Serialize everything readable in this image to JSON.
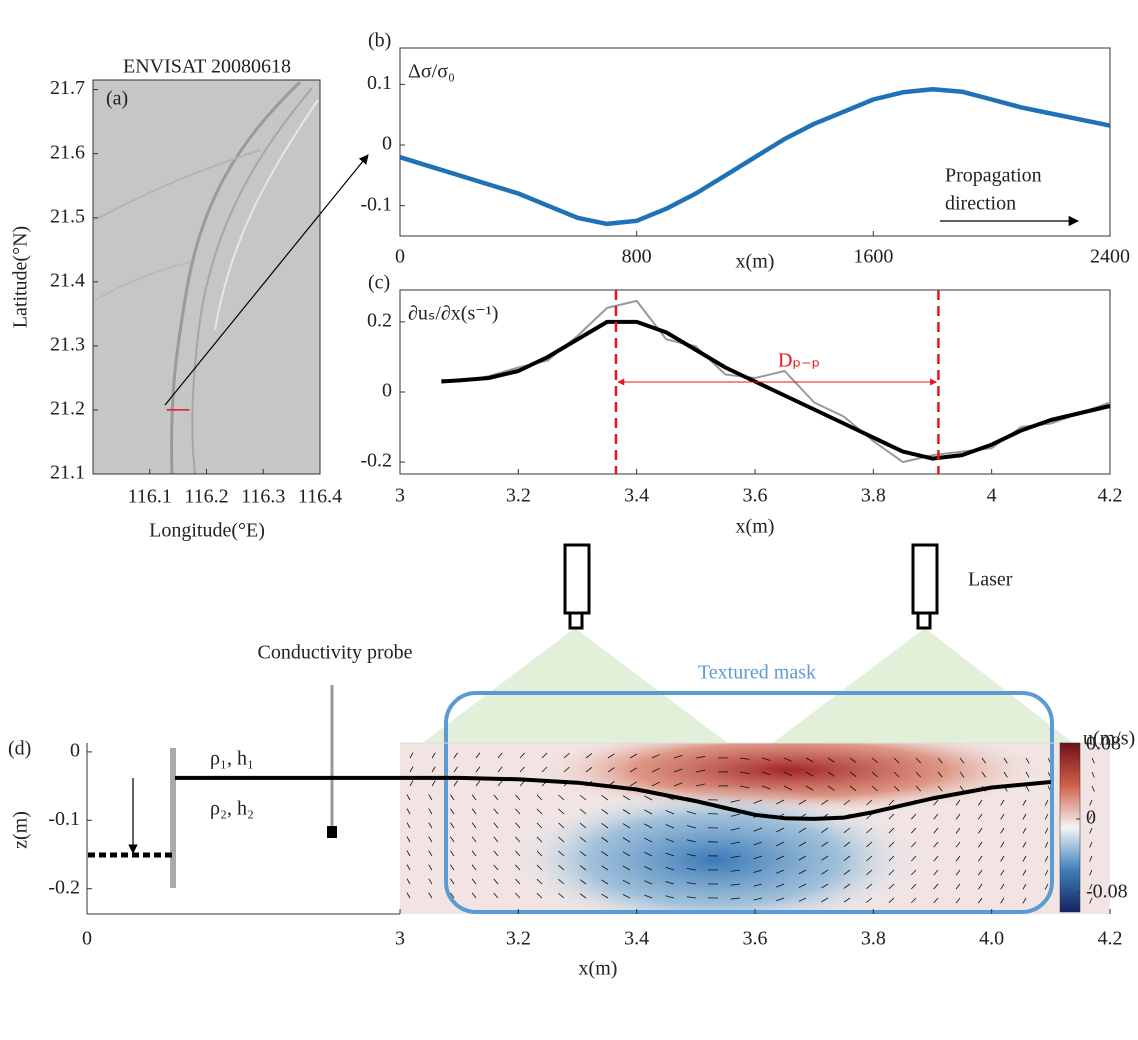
{
  "chart_data": [
    {
      "type": "image",
      "label": "(a)",
      "title": "ENVISAT 20080618",
      "xlabel": "Longitude(°E)",
      "ylabel": "Latitude(°N)",
      "xlim": [
        116.0,
        116.4
      ],
      "xticks": [
        116.1,
        116.2,
        116.3,
        116.4
      ],
      "ylim": [
        21.1,
        21.715
      ],
      "yticks": [
        21.1,
        21.2,
        21.3,
        21.4,
        21.5,
        21.6,
        21.7
      ],
      "series": [
        {
          "color": "#e8141c",
          "x": [
            116.13,
            116.17
          ],
          "values": [
            21.2,
            21.2
          ]
        }
      ]
    },
    {
      "type": "line",
      "label": "(b)",
      "ylabel": "Δσ/σ₀",
      "xlabel": "x(m)",
      "annotation": [
        "Propagation",
        "direction"
      ],
      "xlim": [
        0,
        2400
      ],
      "xticks": [
        0,
        800,
        1600,
        2400
      ],
      "ylim": [
        -0.15,
        0.16
      ],
      "yticks": [
        -0.1,
        0,
        0.1
      ],
      "series": [
        {
          "color": "#1f72b8",
          "x": [
            0,
            100,
            200,
            300,
            400,
            500,
            600,
            700,
            800,
            900,
            1000,
            1100,
            1200,
            1300,
            1400,
            1500,
            1600,
            1700,
            1800,
            1900,
            2000,
            2100,
            2200,
            2300,
            2400
          ],
          "values": [
            -0.02,
            -0.035,
            -0.05,
            -0.065,
            -0.08,
            -0.1,
            -0.12,
            -0.13,
            -0.125,
            -0.105,
            -0.08,
            -0.05,
            -0.02,
            0.01,
            0.035,
            0.055,
            0.075,
            0.087,
            0.092,
            0.088,
            0.075,
            0.062,
            0.052,
            0.042,
            0.032
          ]
        }
      ]
    },
    {
      "type": "line",
      "label": "(c)",
      "ylabel": "∂uₛ/∂x(s⁻¹)",
      "xlabel": "x(m)",
      "annotation": "Dₚ₋ₚ",
      "vlines": [
        3.365,
        3.91
      ],
      "xlim": [
        3,
        4.2
      ],
      "xticks": [
        3,
        3.2,
        3.4,
        3.6,
        3.8,
        4,
        4.2
      ],
      "ylim": [
        -0.234,
        0.291
      ],
      "yticks": [
        -0.2,
        0,
        0.2
      ],
      "series": [
        {
          "color": "#999999",
          "x": [
            3.07,
            3.1,
            3.15,
            3.2,
            3.25,
            3.3,
            3.35,
            3.4,
            3.45,
            3.5,
            3.55,
            3.6,
            3.65,
            3.7,
            3.75,
            3.8,
            3.85,
            3.9,
            3.95,
            4.0,
            4.05,
            4.1,
            4.15,
            4.2
          ],
          "values": [
            0.035,
            0.03,
            0.045,
            0.07,
            0.09,
            0.16,
            0.24,
            0.26,
            0.15,
            0.13,
            0.05,
            0.04,
            0.06,
            -0.03,
            -0.07,
            -0.14,
            -0.2,
            -0.18,
            -0.17,
            -0.16,
            -0.1,
            -0.09,
            -0.06,
            -0.03
          ]
        },
        {
          "color": "#000000",
          "x": [
            3.07,
            3.1,
            3.15,
            3.2,
            3.25,
            3.3,
            3.35,
            3.4,
            3.45,
            3.5,
            3.55,
            3.6,
            3.65,
            3.7,
            3.75,
            3.8,
            3.85,
            3.9,
            3.95,
            4.0,
            4.05,
            4.1,
            4.15,
            4.2
          ],
          "values": [
            0.03,
            0.033,
            0.04,
            0.06,
            0.1,
            0.15,
            0.2,
            0.2,
            0.17,
            0.12,
            0.07,
            0.03,
            -0.01,
            -0.05,
            -0.09,
            -0.13,
            -0.17,
            -0.19,
            -0.18,
            -0.15,
            -0.11,
            -0.08,
            -0.06,
            -0.04
          ]
        }
      ]
    },
    {
      "type": "field",
      "label": "(d)",
      "ylabel": "z(m)",
      "xlabel": "x(m)",
      "annotations": [
        "Conductivity probe",
        "ρ₁, h₁",
        "ρ₂, h₂",
        "Laser",
        "Textured mask"
      ],
      "xlim": [
        3,
        4.2
      ],
      "xticks": [
        0,
        3,
        3.2,
        3.4,
        3.6,
        3.8,
        {
          "value": 4,
          "label": "4.0"
        },
        4.2
      ],
      "ylim": [
        -0.237,
        0.013
      ],
      "yticks": [
        0,
        -0.1,
        -0.2
      ],
      "series": [
        {
          "color": "#000000",
          "x": [
            3,
            3.1,
            3.2,
            3.3,
            3.4,
            3.5,
            3.55,
            3.6,
            3.65,
            3.7,
            3.75,
            3.8,
            3.85,
            3.9,
            4.0,
            4.1
          ],
          "values": [
            -0.038,
            -0.038,
            -0.04,
            -0.045,
            -0.055,
            -0.072,
            -0.082,
            -0.092,
            -0.097,
            -0.098,
            -0.096,
            -0.088,
            -0.078,
            -0.068,
            -0.052,
            -0.044
          ]
        }
      ],
      "colorbar": {
        "label": "u(m/s)",
        "lim": [
          -0.08,
          0.08
        ],
        "ticks": [
          0.08,
          0,
          -0.08
        ]
      }
    }
  ]
}
